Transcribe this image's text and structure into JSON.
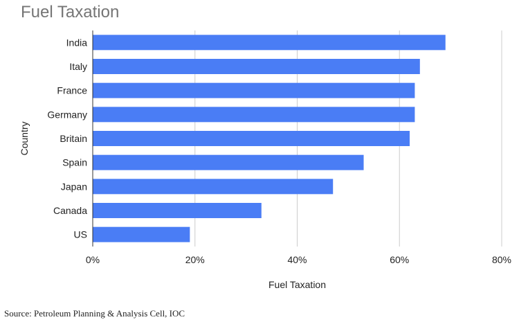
{
  "chart_data": {
    "type": "bar",
    "orientation": "horizontal",
    "title": "Fuel Taxation",
    "xlabel": "Fuel Taxation",
    "ylabel": "Country",
    "categories": [
      "India",
      "Italy",
      "France",
      "Germany",
      "Britain",
      "Spain",
      "Japan",
      "Canada",
      "US"
    ],
    "values": [
      69,
      64,
      63,
      63,
      62,
      53,
      47,
      33,
      19
    ],
    "xlim": [
      0,
      80
    ],
    "x_ticks": [
      0,
      20,
      40,
      60,
      80
    ],
    "x_tick_labels": [
      "0%",
      "20%",
      "40%",
      "60%",
      "80%"
    ],
    "grid": true,
    "legend": "none",
    "bar_color": "#4a7df5"
  },
  "source": "Source: Petroleum Planning & Analysis Cell, IOC"
}
